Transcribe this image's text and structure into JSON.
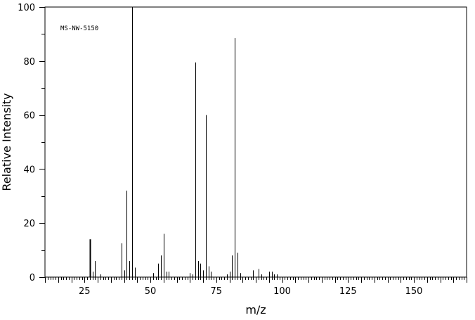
{
  "chart_data": {
    "type": "bar",
    "annotation": "MS-NW-5150",
    "xlabel": "m/z",
    "ylabel": "Relative Intensity",
    "xlim": [
      10,
      170
    ],
    "ylim": [
      0,
      100
    ],
    "x_ticks": [
      25,
      50,
      75,
      100,
      125,
      150
    ],
    "x_ticks_labels": [
      "25",
      "50",
      "75",
      "100",
      "125",
      "150"
    ],
    "y_ticks": [
      0,
      20,
      40,
      60,
      80,
      100
    ],
    "y_ticks_labels": [
      "0",
      "20",
      "40",
      "60",
      "80",
      "100"
    ],
    "grid": false,
    "legend": "none",
    "peaks": [
      {
        "x": 27,
        "y": 14
      },
      {
        "x": 28,
        "y": 2
      },
      {
        "x": 29,
        "y": 6
      },
      {
        "x": 31,
        "y": 1
      },
      {
        "x": 39,
        "y": 12.5
      },
      {
        "x": 40,
        "y": 2.5
      },
      {
        "x": 41,
        "y": 32
      },
      {
        "x": 42,
        "y": 6
      },
      {
        "x": 43,
        "y": 100
      },
      {
        "x": 44,
        "y": 3.5
      },
      {
        "x": 51,
        "y": 1.5
      },
      {
        "x": 53,
        "y": 5
      },
      {
        "x": 54,
        "y": 8
      },
      {
        "x": 55,
        "y": 16
      },
      {
        "x": 56,
        "y": 2
      },
      {
        "x": 57,
        "y": 2
      },
      {
        "x": 65,
        "y": 1.5
      },
      {
        "x": 66,
        "y": 1
      },
      {
        "x": 67,
        "y": 79.5
      },
      {
        "x": 68,
        "y": 6
      },
      {
        "x": 69,
        "y": 5
      },
      {
        "x": 70,
        "y": 2.5
      },
      {
        "x": 71,
        "y": 60
      },
      {
        "x": 72,
        "y": 4
      },
      {
        "x": 73,
        "y": 2
      },
      {
        "x": 79,
        "y": 1
      },
      {
        "x": 80,
        "y": 2
      },
      {
        "x": 81,
        "y": 8
      },
      {
        "x": 82,
        "y": 88.5
      },
      {
        "x": 83,
        "y": 9
      },
      {
        "x": 84,
        "y": 1.5
      },
      {
        "x": 89,
        "y": 2.5
      },
      {
        "x": 91,
        "y": 3
      },
      {
        "x": 92,
        "y": 1
      },
      {
        "x": 95,
        "y": 2
      },
      {
        "x": 96,
        "y": 2
      },
      {
        "x": 97,
        "y": 1
      },
      {
        "x": 98,
        "y": 1
      }
    ]
  }
}
